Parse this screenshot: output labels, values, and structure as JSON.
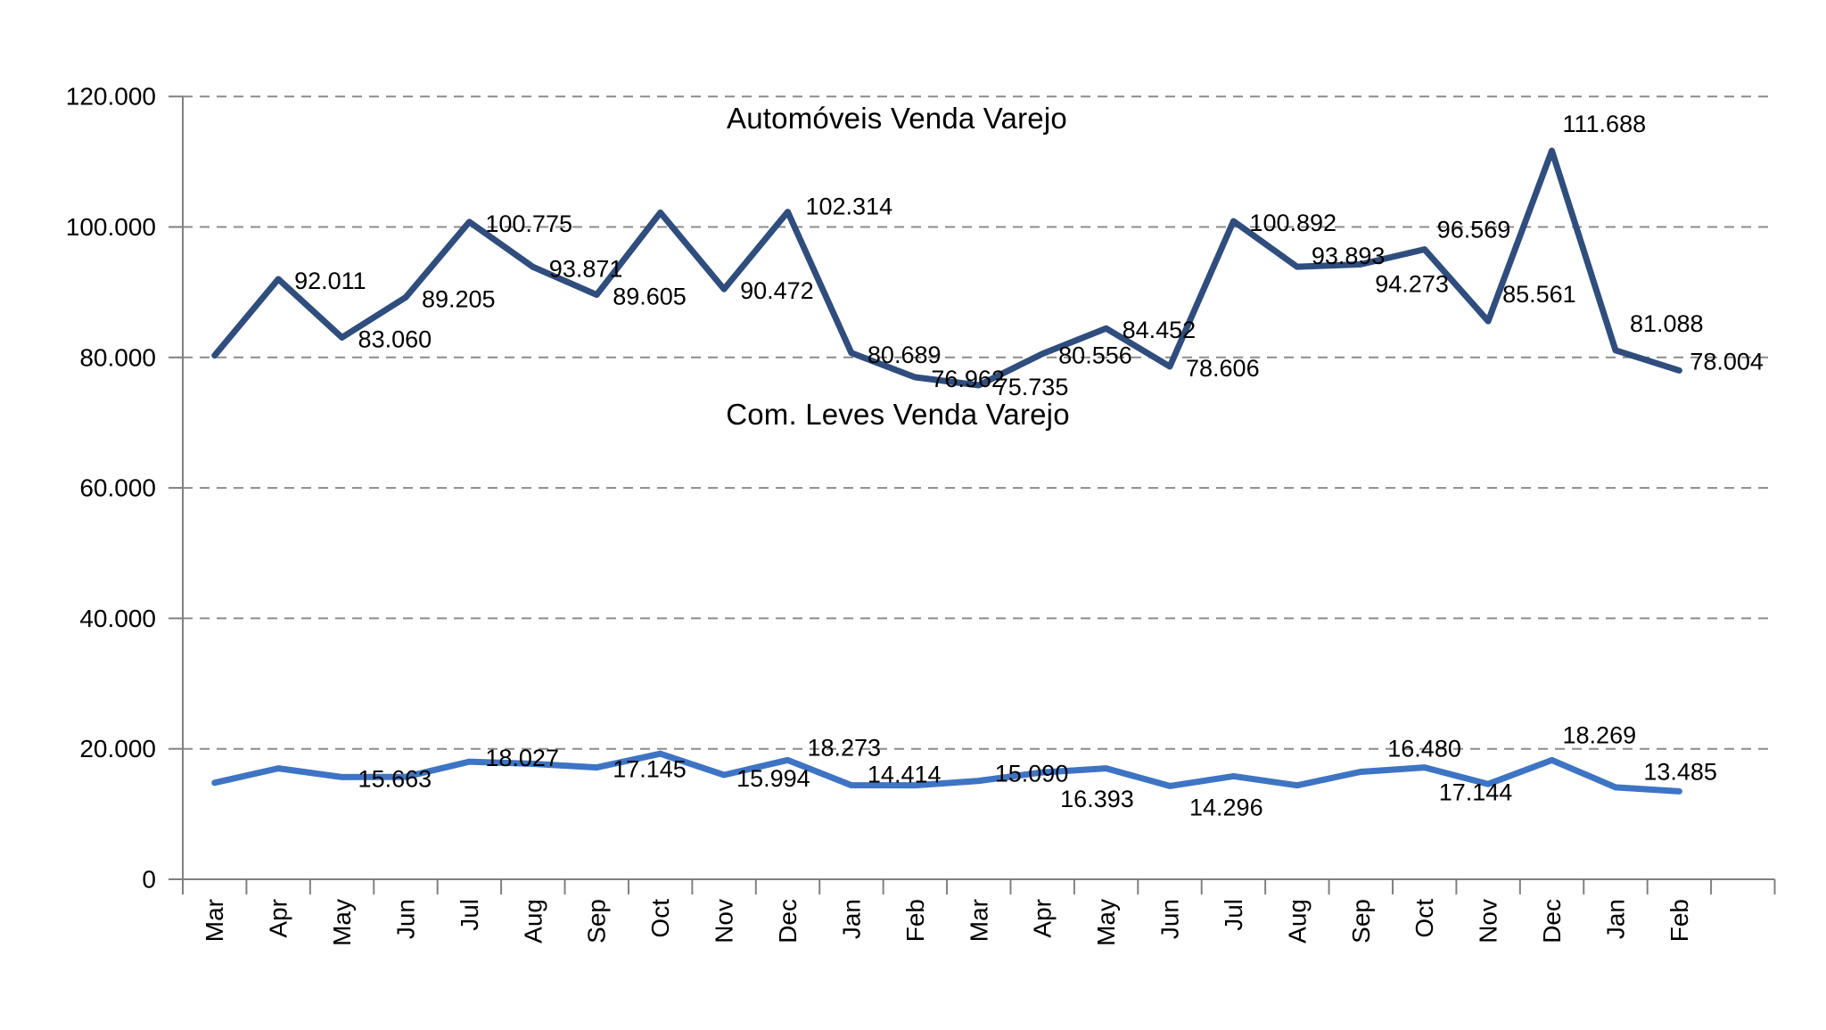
{
  "chart_data": {
    "type": "line",
    "title": "",
    "xlabel": "",
    "ylabel": "",
    "grid": "horizontal-dashed",
    "legend_position": "none-inline-titles",
    "categories": [
      "Mar",
      "Apr",
      "May",
      "Jun",
      "Jul",
      "Aug",
      "Sep",
      "Oct",
      "Nov",
      "Dec",
      "Jan",
      "Feb",
      "Mar",
      "Apr",
      "May",
      "Jun",
      "Jul",
      "Aug",
      "Sep",
      "Oct",
      "Nov",
      "Dec",
      "Jan",
      "Feb"
    ],
    "y_axis": {
      "min": 0,
      "max": 120000,
      "step": 20000,
      "tick_labels": [
        "0",
        "20.000",
        "40.000",
        "60.000",
        "80.000",
        "100.000",
        "120.000"
      ]
    },
    "colors": {
      "automoveis_line": "#2F4D7D",
      "com_leves_line": "#3E74C4",
      "gridline": "#8C8C8C",
      "axis": "#808080",
      "text": "#000000",
      "background": "#FFFFFF"
    },
    "series": [
      {
        "name": "Automóveis Venda Varejo",
        "color": "#2F4D7D",
        "stroke_width": 7,
        "values": [
          80300,
          92011,
          83060,
          89205,
          100775,
          93871,
          89605,
          102200,
          90472,
          102314,
          80689,
          76962,
          75735,
          80556,
          84452,
          78606,
          100892,
          93893,
          94273,
          96569,
          85561,
          111688,
          81088,
          78004
        ],
        "labels": [
          null,
          "92.011",
          "83.060",
          "89.205",
          "100.775",
          "93.871",
          "89.605",
          null,
          "90.472",
          "102.314",
          "80.689",
          "76.962",
          "75.735",
          "80.556",
          "84.452",
          "78.606",
          "100.892",
          "93.893",
          "94.273",
          "96.569",
          "85.561",
          "111.688",
          "81.088",
          "78.004"
        ],
        "label_offsets": {
          "9": [
            20,
            -6
          ],
          "17": [
            16,
            -12
          ],
          "18": [
            16,
            22
          ],
          "19": [
            14,
            -22
          ],
          "20": [
            16,
            -30
          ],
          "21": [
            12,
            -30
          ],
          "22": [
            16,
            -30
          ],
          "23": [
            12,
            -10
          ]
        }
      },
      {
        "name": "Com. Leves Venda Varejo",
        "color": "#3E74C4",
        "stroke_width": 7,
        "values": [
          14800,
          17000,
          15663,
          15700,
          18027,
          17700,
          17145,
          19250,
          15994,
          18273,
          14414,
          14400,
          15090,
          16393,
          17000,
          14296,
          15800,
          14400,
          16480,
          17144,
          14600,
          18269,
          14100,
          13485
        ],
        "labels": [
          null,
          null,
          "15.663",
          null,
          "18.027",
          null,
          "17.145",
          null,
          "15.994",
          "18.273",
          "14.414",
          null,
          "15.090",
          "16.393",
          null,
          "14.296",
          null,
          null,
          "16.480",
          "17.144",
          null,
          "18.269",
          null,
          "13.485"
        ],
        "label_offsets": {
          "4": [
            18,
            -4
          ],
          "8": [
            14,
            4
          ],
          "9": [
            22,
            -14
          ],
          "10": [
            18,
            -12
          ],
          "12": [
            18,
            -8
          ],
          "13": [
            20,
            30
          ],
          "15": [
            22,
            24
          ],
          "18": [
            30,
            -26
          ],
          "19": [
            16,
            28
          ],
          "21": [
            12,
            -28
          ],
          "23": [
            -40,
            -22
          ]
        }
      }
    ],
    "inline_titles": [
      {
        "text": "Automóveis Venda Varejo",
        "x": 1006,
        "y": 133
      },
      {
        "text": "Com. Leves Venda Varejo",
        "x": 1007,
        "y": 465
      }
    ]
  }
}
